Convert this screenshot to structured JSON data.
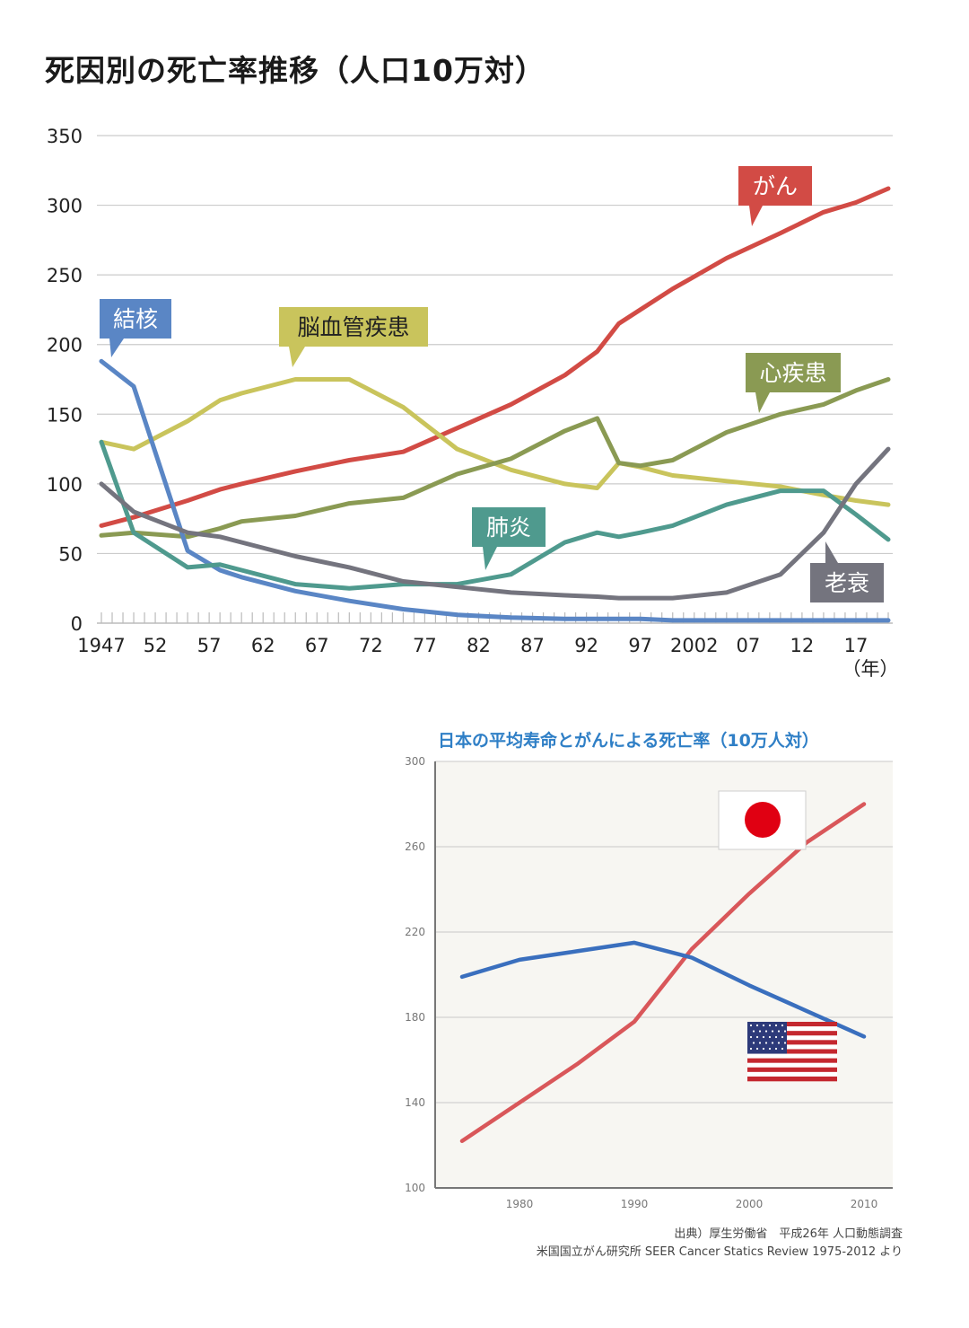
{
  "chart_data": [
    {
      "type": "line",
      "title": "死因別の死亡率推移（人口10万対）",
      "xlabel": "（年）",
      "ylim": [
        0,
        350
      ],
      "yticks": [
        "0",
        "50",
        "100",
        "150",
        "200",
        "250",
        "300",
        "350"
      ],
      "xticks": [
        "1947",
        "52",
        "57",
        "62",
        "67",
        "72",
        "77",
        "82",
        "87",
        "92",
        "97",
        "2002",
        "07",
        "12",
        "17"
      ],
      "grid": true,
      "x": [
        1947,
        1950,
        1955,
        1958,
        1960,
        1965,
        1970,
        1975,
        1980,
        1985,
        1990,
        1993,
        1995,
        1997,
        2000,
        2005,
        2010,
        2014,
        2017,
        2020
      ],
      "series": [
        {
          "name": "がん",
          "color": "#d24b45",
          "values": [
            70,
            76,
            88,
            96,
            100,
            109,
            117,
            123,
            140,
            157,
            178,
            195,
            215,
            225,
            240,
            262,
            280,
            295,
            302,
            312
          ]
        },
        {
          "name": "脳血管疾患",
          "color": "#c9c45c",
          "values": [
            130,
            125,
            145,
            160,
            165,
            175,
            175,
            155,
            125,
            110,
            100,
            97,
            115,
            112,
            106,
            102,
            98,
            92,
            88,
            85
          ]
        },
        {
          "name": "心疾患",
          "color": "#8a9a53",
          "values": [
            63,
            65,
            62,
            68,
            73,
            77,
            86,
            90,
            107,
            118,
            138,
            147,
            115,
            113,
            117,
            137,
            150,
            157,
            167,
            175
          ]
        },
        {
          "name": "結核",
          "color": "#5a86c5",
          "values": [
            188,
            170,
            52,
            38,
            33,
            23,
            16,
            10,
            6,
            4,
            3,
            3,
            3,
            3,
            2,
            2,
            2,
            2,
            2,
            2
          ]
        },
        {
          "name": "肺炎",
          "color": "#4f9a8e",
          "values": [
            130,
            65,
            40,
            42,
            38,
            28,
            25,
            28,
            28,
            35,
            58,
            65,
            62,
            65,
            70,
            85,
            95,
            95,
            78,
            60
          ]
        },
        {
          "name": "老衰",
          "color": "#74747e",
          "values": [
            100,
            80,
            65,
            62,
            58,
            48,
            40,
            30,
            26,
            22,
            20,
            19,
            18,
            18,
            18,
            22,
            35,
            65,
            100,
            125
          ]
        }
      ]
    },
    {
      "type": "line",
      "title": "日本の平均寿命とがんによる死亡率（10万人対）",
      "ylim": [
        100,
        300
      ],
      "yticks": [
        "100",
        "140",
        "180",
        "220",
        "260",
        "300"
      ],
      "xticks": [
        "1980",
        "1990",
        "2000",
        "2010"
      ],
      "grid": true,
      "x": [
        1975,
        1980,
        1985,
        1990,
        1995,
        2000,
        2005,
        2010
      ],
      "series": [
        {
          "color": "#d9575a",
          "values": [
            122,
            140,
            158,
            178,
            212,
            238,
            262,
            280
          ]
        },
        {
          "color": "#3a6fbe",
          "values": [
            199,
            207,
            211,
            215,
            208,
            195,
            183,
            171
          ]
        }
      ]
    }
  ],
  "source": {
    "line1": "出典）厚生労働省　平成26年 人口動態調査",
    "line2": "米国国立がん研究所 SEER Cancer Statics Review 1975-2012 より"
  },
  "flags": {
    "japan": "japan-flag-icon",
    "usa": "usa-flag-icon"
  }
}
